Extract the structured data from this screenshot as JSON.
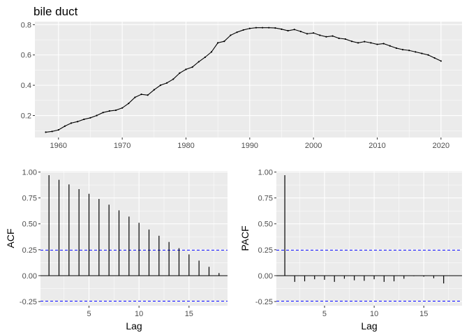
{
  "chart_data": [
    {
      "type": "line",
      "title": "bile duct",
      "xlabel": "",
      "ylabel": "",
      "xlim": [
        1956.3,
        2023.3
      ],
      "ylim": [
        0.055,
        0.82
      ],
      "x_ticks": [
        1960,
        1970,
        1980,
        1990,
        2000,
        2010,
        2020
      ],
      "x_tick_labels": [
        "1960",
        "1970",
        "1980",
        "1990",
        "2000",
        "2010",
        "2020"
      ],
      "y_ticks": [
        0.2,
        0.4,
        0.6,
        0.8
      ],
      "y_tick_labels": [
        "0.2",
        "0.4",
        "0.6",
        "0.8"
      ],
      "grid": true,
      "x": [
        1958,
        1959,
        1960,
        1961,
        1962,
        1963,
        1964,
        1965,
        1966,
        1967,
        1968,
        1969,
        1970,
        1971,
        1972,
        1973,
        1974,
        1975,
        1976,
        1977,
        1978,
        1979,
        1980,
        1981,
        1982,
        1983,
        1984,
        1985,
        1986,
        1987,
        1988,
        1989,
        1990,
        1991,
        1992,
        1993,
        1994,
        1995,
        1996,
        1997,
        1998,
        1999,
        2000,
        2001,
        2002,
        2003,
        2004,
        2005,
        2006,
        2007,
        2008,
        2009,
        2010,
        2011,
        2012,
        2013,
        2014,
        2015,
        2016,
        2017,
        2018,
        2019,
        2020
      ],
      "values": [
        0.09,
        0.095,
        0.105,
        0.13,
        0.15,
        0.16,
        0.175,
        0.185,
        0.2,
        0.22,
        0.23,
        0.235,
        0.25,
        0.28,
        0.32,
        0.34,
        0.335,
        0.37,
        0.4,
        0.415,
        0.44,
        0.48,
        0.505,
        0.52,
        0.555,
        0.585,
        0.62,
        0.68,
        0.69,
        0.73,
        0.75,
        0.765,
        0.775,
        0.78,
        0.78,
        0.78,
        0.778,
        0.77,
        0.76,
        0.768,
        0.755,
        0.74,
        0.745,
        0.73,
        0.72,
        0.725,
        0.71,
        0.705,
        0.69,
        0.68,
        0.688,
        0.68,
        0.67,
        0.675,
        0.66,
        0.645,
        0.635,
        0.63,
        0.62,
        0.61,
        0.6,
        0.58,
        0.56
      ],
      "color": "#000000"
    },
    {
      "type": "bar",
      "title": "",
      "xlabel": "Lag",
      "ylabel": "ACF",
      "xlim": [
        0.15,
        18.85
      ],
      "ylim": [
        -0.29,
        1.01
      ],
      "x_ticks": [
        5,
        10,
        15
      ],
      "x_tick_labels": [
        "5",
        "10",
        "15"
      ],
      "y_ticks": [
        -0.25,
        0,
        0.25,
        0.5,
        0.75,
        1.0
      ],
      "y_tick_labels": [
        "-0.25",
        "0.00",
        "0.25",
        "0.50",
        "0.75",
        "1.00"
      ],
      "grid": true,
      "lags": [
        1,
        2,
        3,
        4,
        5,
        6,
        7,
        8,
        9,
        10,
        11,
        12,
        13,
        14,
        15,
        16,
        17,
        18
      ],
      "values": [
        0.97,
        0.925,
        0.88,
        0.835,
        0.79,
        0.74,
        0.685,
        0.63,
        0.57,
        0.51,
        0.445,
        0.385,
        0.325,
        0.265,
        0.205,
        0.145,
        0.085,
        0.025
      ],
      "confidence_bound": 0.246,
      "bound_color": "#0000ff",
      "bar_color": "#000000"
    },
    {
      "type": "bar",
      "title": "",
      "xlabel": "Lag",
      "ylabel": "PACF",
      "xlim": [
        0.15,
        18.85
      ],
      "ylim": [
        -0.29,
        1.01
      ],
      "x_ticks": [
        5,
        10,
        15
      ],
      "x_tick_labels": [
        "5",
        "10",
        "15"
      ],
      "y_ticks": [
        -0.25,
        0,
        0.25,
        0.5,
        0.75,
        1.0
      ],
      "y_tick_labels": [
        "-0.25",
        "0.00",
        "0.25",
        "0.50",
        "0.75",
        "1.00"
      ],
      "grid": true,
      "lags": [
        1,
        2,
        3,
        4,
        5,
        6,
        7,
        8,
        9,
        10,
        11,
        12,
        13,
        14,
        15,
        16,
        17,
        18
      ],
      "values": [
        0.97,
        -0.06,
        -0.055,
        -0.035,
        -0.04,
        -0.06,
        -0.03,
        -0.045,
        -0.05,
        -0.035,
        -0.06,
        -0.055,
        -0.03,
        -0.005,
        -0.01,
        -0.025,
        -0.075,
        0.0
      ],
      "confidence_bound": 0.246,
      "bound_color": "#0000ff",
      "bar_color": "#000000"
    }
  ]
}
